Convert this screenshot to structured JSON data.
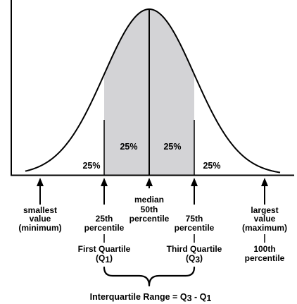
{
  "colors": {
    "iqr_fill": "#d3d3d6",
    "line": "#000000",
    "background": "#ffffff"
  },
  "quartile_percent": {
    "outer_left": "25%",
    "inner_left": "25%",
    "inner_right": "25%",
    "outer_right": "25%"
  },
  "labels": {
    "smallest": [
      "smallest",
      "value",
      "(minimum)"
    ],
    "q1": [
      "25th",
      "percentile"
    ],
    "median": [
      "median",
      "50th",
      "percentile"
    ],
    "q3": [
      "75th",
      "percentile"
    ],
    "largest": [
      "largest",
      "value",
      "(maximum)"
    ],
    "first_quartile": "First Quartile",
    "q1_symbol": {
      "letter": "Q",
      "sub": "1"
    },
    "third_quartile": "Third Quartile",
    "q3_symbol": {
      "letter": "Q",
      "sub": "3"
    },
    "hundredth": [
      "100th",
      "percentile"
    ]
  },
  "iqr_formula": {
    "text": "Interquartile Range = Q",
    "sub3": "3",
    "minus": " - Q",
    "sub1": "1"
  }
}
